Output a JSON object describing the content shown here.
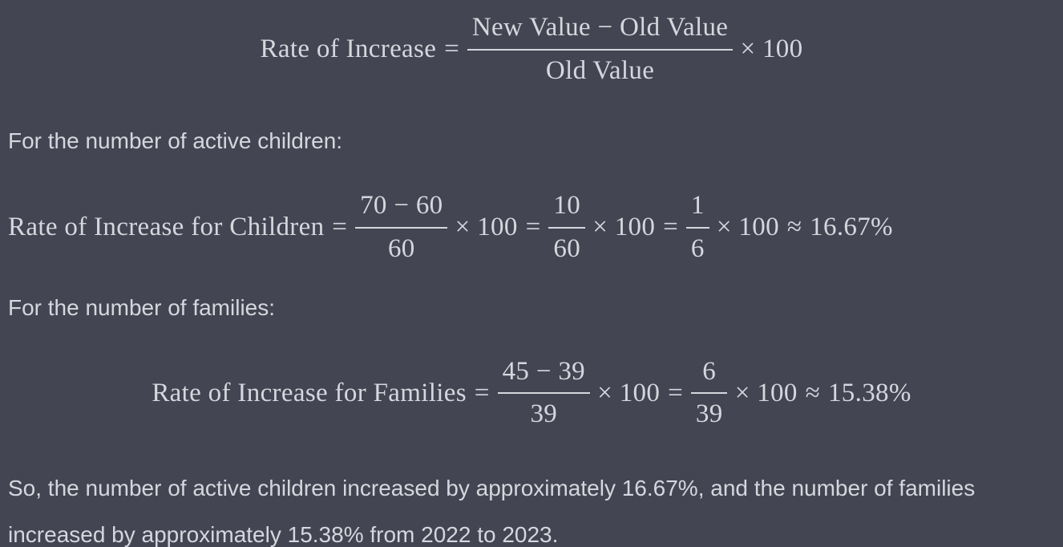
{
  "theme": {
    "background": "#434552",
    "text_color": "#d5d7de"
  },
  "formula_general": {
    "lhs": "Rate of Increase",
    "rel": "=",
    "frac": {
      "num": "New Value − Old Value",
      "den": "Old Value"
    },
    "op": "× 100"
  },
  "intro_children": "For the number of active children:",
  "formula_children": {
    "lhs": "Rate of Increase for Children",
    "rel1": "=",
    "frac1": {
      "num": "70 − 60",
      "den": "60"
    },
    "op1": "× 100",
    "rel2": "=",
    "frac2": {
      "num": "10",
      "den": "60"
    },
    "op2": "× 100",
    "rel3": "=",
    "frac3": {
      "num": "1",
      "den": "6"
    },
    "op3": "× 100",
    "rel4": "≈",
    "result": "16.67%"
  },
  "intro_families": "For the number of families:",
  "formula_families": {
    "lhs": "Rate of Increase for Families",
    "rel1": "=",
    "frac1": {
      "num": "45 − 39",
      "den": "39"
    },
    "op1": "× 100",
    "rel2": "=",
    "frac2": {
      "num": "6",
      "den": "39"
    },
    "op2": "× 100",
    "rel3": "≈",
    "result": "15.38%"
  },
  "conclusion": "So, the number of active children increased by approximately 16.67%, and the number of families increased by approximately 15.38% from 2022 to 2023."
}
